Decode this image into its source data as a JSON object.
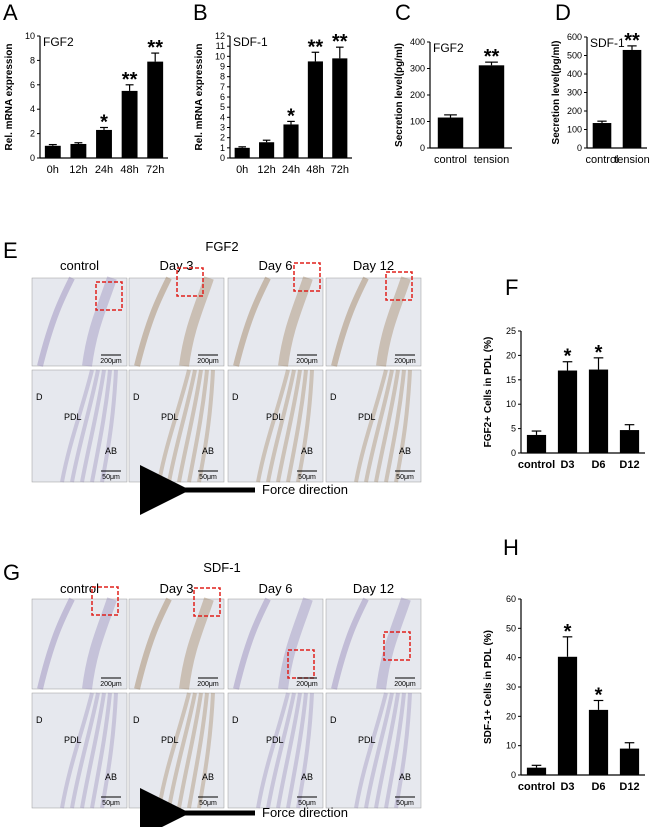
{
  "chart_data": [
    {
      "panel": "A",
      "type": "bar",
      "series_label": "FGF2",
      "ylabel": "Rel. mRNA expression",
      "ylim": [
        0,
        10
      ],
      "yticks": [
        0,
        2,
        4,
        6,
        8,
        10
      ],
      "categories": [
        "0h",
        "12h",
        "24h",
        "48h",
        "72h"
      ],
      "values": [
        1.0,
        1.15,
        2.3,
        5.5,
        7.9
      ],
      "errors": [
        0.1,
        0.1,
        0.2,
        0.5,
        0.7
      ],
      "annotations": [
        "",
        "",
        "*",
        "**",
        "**"
      ]
    },
    {
      "panel": "B",
      "type": "bar",
      "series_label": "SDF-1",
      "ylabel": "Rel. mRNA expression",
      "ylim": [
        0,
        12
      ],
      "yticks": [
        0,
        1,
        2,
        3,
        4,
        5,
        6,
        7,
        8,
        9,
        10,
        11,
        12
      ],
      "categories": [
        "0h",
        "12h",
        "24h",
        "48h",
        "72h"
      ],
      "values": [
        1.0,
        1.55,
        3.3,
        9.5,
        9.8
      ],
      "errors": [
        0.1,
        0.2,
        0.3,
        0.9,
        1.1
      ],
      "annotations": [
        "",
        "",
        "*",
        "**",
        "**"
      ]
    },
    {
      "panel": "C",
      "type": "bar",
      "series_label": "FGF2",
      "ylabel": "Secretion level(pg/ml)",
      "ylim": [
        0,
        400
      ],
      "yticks": [
        0,
        100,
        200,
        300,
        400
      ],
      "categories": [
        "control",
        "tension"
      ],
      "values": [
        115,
        312
      ],
      "errors": [
        10,
        12
      ],
      "annotations": [
        "",
        "**"
      ]
    },
    {
      "panel": "D",
      "type": "bar",
      "series_label": "SDF-1",
      "ylabel": "Secretion level(pg/ml)",
      "ylim": [
        0,
        600
      ],
      "yticks": [
        0,
        100,
        200,
        300,
        400,
        500,
        600
      ],
      "categories": [
        "control",
        "tension"
      ],
      "values": [
        135,
        530
      ],
      "errors": [
        10,
        22
      ],
      "annotations": [
        "",
        "**"
      ]
    },
    {
      "panel": "F",
      "type": "bar",
      "ylabel": "FGF2+ Cells in PDL  (%)",
      "ylim": [
        0,
        25
      ],
      "yticks": [
        0,
        5,
        10,
        15,
        20,
        25
      ],
      "categories": [
        "control",
        "D3",
        "D6",
        "D12"
      ],
      "values": [
        3.7,
        16.9,
        17.1,
        4.7
      ],
      "errors": [
        0.8,
        1.8,
        2.4,
        1.1
      ],
      "annotations": [
        "",
        "*",
        "*",
        ""
      ]
    },
    {
      "panel": "H",
      "type": "bar",
      "ylabel": "SDF-1+ Cells in PDL  (%)",
      "ylim": [
        0,
        60
      ],
      "yticks": [
        0,
        10,
        20,
        30,
        40,
        50,
        60
      ],
      "categories": [
        "control",
        "D3",
        "D6",
        "D12"
      ],
      "values": [
        2.5,
        40.3,
        22.2,
        9.0
      ],
      "errors": [
        0.8,
        6.8,
        3.2,
        2.0
      ],
      "annotations": [
        "",
        "*",
        "*",
        ""
      ]
    }
  ],
  "micrographs": [
    {
      "panel": "E",
      "title": "FGF2",
      "columns": [
        "control",
        "Day 3",
        "Day 6",
        "Day 12"
      ],
      "low_scale_bar": "200μm",
      "high_scale_bar": "50μm",
      "tissue_labels": [
        "D",
        "PDL",
        "AB"
      ],
      "force_label": "Force direction"
    },
    {
      "panel": "G",
      "title": "SDF-1",
      "columns": [
        "control",
        "Day 3",
        "Day 6",
        "Day 12"
      ],
      "low_scale_bar": "200μm",
      "high_scale_bar": "50μm",
      "tissue_labels": [
        "D",
        "PDL",
        "AB"
      ],
      "force_label": "Force direction"
    }
  ],
  "colors": {
    "bar": "#000000",
    "roi_box": "#e0201c",
    "tissue_bg": "#e6e8ee",
    "tissue_stain_brown": "#8a6030",
    "tissue_stain_purple": "#7a6aa8"
  }
}
